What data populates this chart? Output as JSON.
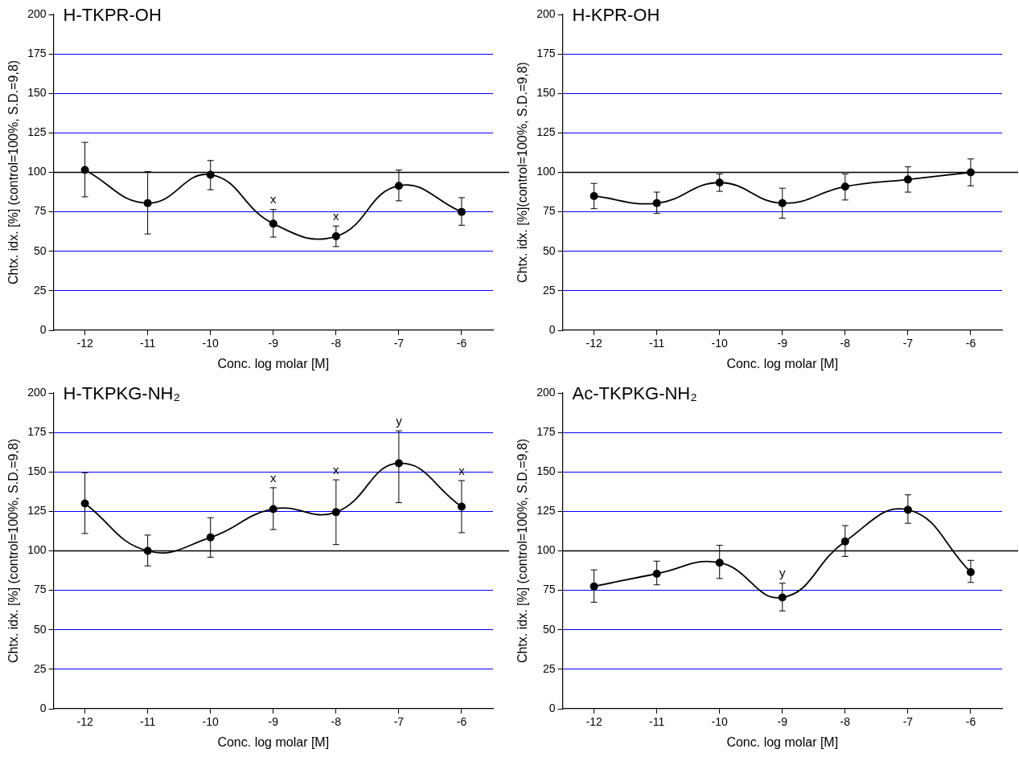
{
  "chart_data": [
    {
      "type": "line",
      "title": "H-TKPR-OH",
      "xlabel": "Conc. log molar [M]",
      "ylabel": "Chtx. idx. [%] (control=100%, S.D.=9,8)",
      "x": [
        -12,
        -11,
        -10,
        -9,
        -8,
        -7,
        -6
      ],
      "xlim": [
        -12.5,
        -5.5
      ],
      "xticks": [
        -12,
        -11,
        -10,
        -9,
        -8,
        -7,
        -6
      ],
      "ylim": [
        0,
        200
      ],
      "yticks": [
        0,
        25,
        50,
        75,
        100,
        125,
        150,
        175,
        200
      ],
      "grid": "y",
      "marker": "circle",
      "line_style": "solid",
      "legend": false,
      "series": [
        {
          "color": "#000000",
          "values": [
            101.5,
            80.5,
            98.5,
            67.5,
            59.5,
            91.5,
            75
          ],
          "errors": [
            [
              84.5,
              119
            ],
            [
              61,
              100.5
            ],
            [
              89,
              107.5
            ],
            [
              59,
              76.5
            ],
            [
              53,
              66
            ],
            [
              82,
              101.5
            ],
            [
              66.5,
              84
            ]
          ]
        }
      ],
      "ref_lines": [
        {
          "axis": "y",
          "value": 100,
          "color": "#000000"
        }
      ],
      "annotations": [
        {
          "text": "x",
          "x": -9,
          "y": 67.5
        },
        {
          "text": "x",
          "x": -8,
          "y": 59.5
        }
      ]
    },
    {
      "type": "line",
      "title": "H-KPR-OH",
      "xlabel": "Conc. log molar [M]",
      "ylabel": "Chtx. idx. [%](control=100%, S.D.=9,8)",
      "x": [
        -12,
        -11,
        -10,
        -9,
        -8,
        -7,
        -6
      ],
      "xlim": [
        -12.5,
        -5.5
      ],
      "xticks": [
        -12,
        -11,
        -10,
        -9,
        -8,
        -7,
        -6
      ],
      "ylim": [
        0,
        200
      ],
      "yticks": [
        0,
        25,
        50,
        75,
        100,
        125,
        150,
        175,
        200
      ],
      "grid": "y",
      "marker": "circle",
      "line_style": "solid",
      "legend": false,
      "series": [
        {
          "color": "#000000",
          "values": [
            85,
            80.5,
            93.5,
            80.5,
            91,
            95.5,
            100
          ],
          "errors": [
            [
              77,
              93
            ],
            [
              74,
              87.5
            ],
            [
              88,
              99
            ],
            [
              71,
              90
            ],
            [
              82.5,
              99
            ],
            [
              87.5,
              103.5
            ],
            [
              91.5,
              108.5
            ]
          ]
        }
      ],
      "ref_lines": [
        {
          "axis": "y",
          "value": 100,
          "color": "#000000"
        }
      ]
    },
    {
      "type": "line",
      "title": "H-TKPKG-NH₂",
      "xlabel": "Conc. log molar [M]",
      "ylabel": "Chtx. idx. [%] (control=100%, S.D.=9,8)",
      "x": [
        -12,
        -11,
        -10,
        -9,
        -8,
        -7,
        -6
      ],
      "xlim": [
        -12.5,
        -5.5
      ],
      "xticks": [
        -12,
        -11,
        -10,
        -9,
        -8,
        -7,
        -6
      ],
      "ylim": [
        0,
        200
      ],
      "yticks": [
        0,
        25,
        50,
        75,
        100,
        125,
        150,
        175,
        200
      ],
      "grid": "y",
      "marker": "circle",
      "line_style": "solid",
      "legend": false,
      "series": [
        {
          "color": "#000000",
          "values": [
            130,
            100,
            108.5,
            126.5,
            124.5,
            155.5,
            128
          ],
          "errors": [
            [
              111,
              149.5
            ],
            [
              90.5,
              110
            ],
            [
              96,
              121
            ],
            [
              113.5,
              140
            ],
            [
              104,
              145
            ],
            [
              130.5,
              176
            ],
            [
              111.5,
              144.5
            ]
          ]
        }
      ],
      "ref_lines": [
        {
          "axis": "y",
          "value": 100,
          "color": "#000000"
        }
      ],
      "annotations": [
        {
          "text": "x",
          "x": -9,
          "y": 126.5
        },
        {
          "text": "x",
          "x": -8,
          "y": 124.5
        },
        {
          "text": "y",
          "x": -7,
          "y": 155.5
        },
        {
          "text": "x",
          "x": -6,
          "y": 128
        }
      ]
    },
    {
      "type": "line",
      "title": "Ac-TKPKG-NH₂",
      "xlabel": "Conc. log molar [M]",
      "ylabel": "Chtx. idx. [%] (control=100%, S.D.=9,8)",
      "x": [
        -12,
        -11,
        -10,
        -9,
        -8,
        -7,
        -6
      ],
      "xlim": [
        -12.5,
        -5.5
      ],
      "xticks": [
        -12,
        -11,
        -10,
        -9,
        -8,
        -7,
        -6
      ],
      "ylim": [
        0,
        200
      ],
      "yticks": [
        0,
        25,
        50,
        75,
        100,
        125,
        150,
        175,
        200
      ],
      "grid": "y",
      "marker": "circle",
      "line_style": "solid",
      "legend": false,
      "series": [
        {
          "color": "#000000",
          "values": [
            77.5,
            85.5,
            92.5,
            70.5,
            106,
            126,
            86.5
          ],
          "errors": [
            [
              67.5,
              88
            ],
            [
              78.5,
              93.5
            ],
            [
              82.5,
              103.5
            ],
            [
              62,
              79.5
            ],
            [
              96.5,
              116
            ],
            [
              117.5,
              135.5
            ],
            [
              80,
              94
            ]
          ]
        }
      ],
      "ref_lines": [
        {
          "axis": "y",
          "value": 100,
          "color": "#000000"
        }
      ],
      "annotations": [
        {
          "text": "y",
          "x": -9,
          "y": 70.5
        }
      ]
    }
  ]
}
